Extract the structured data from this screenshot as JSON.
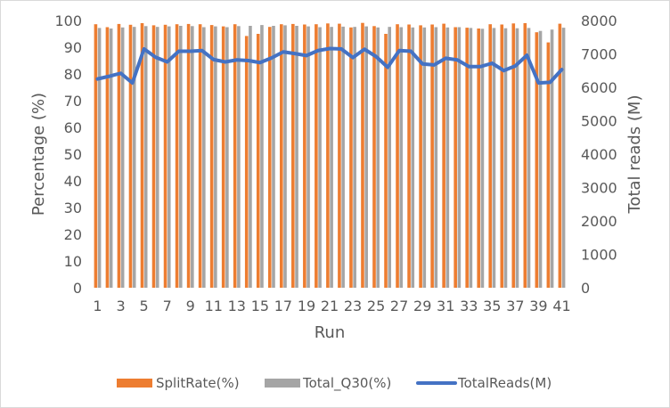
{
  "chart_data": {
    "type": "bar",
    "title": "",
    "xlabel": "Run",
    "ylabel_left": "Percentage (%)",
    "ylabel_right": "Total reads (M)",
    "ylim_left": [
      0,
      100
    ],
    "ylim_right": [
      0,
      8000
    ],
    "yticks_left": [
      0,
      10,
      20,
      30,
      40,
      50,
      60,
      70,
      80,
      90,
      100
    ],
    "yticks_right": [
      0,
      1000,
      2000,
      3000,
      4000,
      5000,
      6000,
      7000,
      8000
    ],
    "grid": false,
    "legend_position": "bottom",
    "categories": [
      1,
      2,
      3,
      4,
      5,
      6,
      7,
      8,
      9,
      10,
      11,
      12,
      13,
      14,
      15,
      16,
      17,
      18,
      19,
      20,
      21,
      22,
      23,
      24,
      25,
      26,
      27,
      28,
      29,
      30,
      31,
      32,
      33,
      34,
      35,
      36,
      37,
      38,
      39,
      40,
      41
    ],
    "x_tick_labels": [
      1,
      3,
      5,
      7,
      9,
      11,
      13,
      15,
      17,
      19,
      21,
      23,
      25,
      27,
      29,
      31,
      33,
      35,
      37,
      39,
      41
    ],
    "series": [
      {
        "name": "SplitRate(%)",
        "type": "bar",
        "axis": "left",
        "color": "#ED7D31",
        "values": [
          98.6,
          97.5,
          98.7,
          98.4,
          99.0,
          98.2,
          98.4,
          98.6,
          98.7,
          98.6,
          98.3,
          97.8,
          98.6,
          94.2,
          95.0,
          97.6,
          98.6,
          98.7,
          98.5,
          98.6,
          98.9,
          98.8,
          97.4,
          99.1,
          97.9,
          95.0,
          98.6,
          98.5,
          98.2,
          98.5,
          98.8,
          97.5,
          97.3,
          97.0,
          98.6,
          98.5,
          98.9,
          99.0,
          95.6,
          91.8,
          98.8
        ]
      },
      {
        "name": "Total_Q30(%)",
        "type": "bar",
        "axis": "left",
        "color": "#A5A5A5",
        "values": [
          97.2,
          97.0,
          97.4,
          97.6,
          97.9,
          97.6,
          97.8,
          98.0,
          97.9,
          97.5,
          97.8,
          97.5,
          97.9,
          98.0,
          98.3,
          98.0,
          98.2,
          98.0,
          97.8,
          97.5,
          97.6,
          97.7,
          97.6,
          97.8,
          97.4,
          97.6,
          97.5,
          97.4,
          97.4,
          97.5,
          97.4,
          97.5,
          97.2,
          96.9,
          97.2,
          97.1,
          97.1,
          97.2,
          96.1,
          96.6,
          97.3
        ]
      },
      {
        "name": "TotalReads(M)",
        "type": "line",
        "axis": "right",
        "color": "#4472C4",
        "values": [
          6250,
          6330,
          6420,
          6130,
          7150,
          6900,
          6760,
          7080,
          7080,
          7100,
          6830,
          6760,
          6820,
          6800,
          6740,
          6880,
          7060,
          7010,
          6950,
          7100,
          7160,
          7150,
          6890,
          7140,
          6920,
          6600,
          7100,
          7080,
          6700,
          6670,
          6870,
          6820,
          6620,
          6620,
          6720,
          6500,
          6640,
          6960,
          6130,
          6150,
          6530
        ]
      }
    ]
  }
}
